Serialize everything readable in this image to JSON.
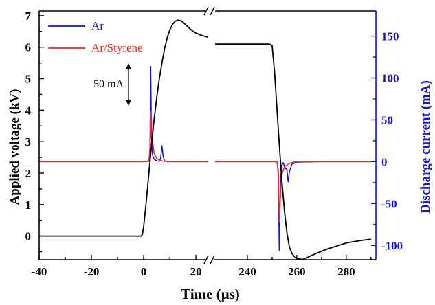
{
  "chart_data": {
    "type": "line",
    "xlabel": "Time (μs)",
    "ylabel_left": "Applied voltage (kV)",
    "ylabel_right": "Discharge current (mA)",
    "x_ticks": [
      "-40",
      "-20",
      "0",
      "20",
      "240",
      "260",
      "280"
    ],
    "y_left_ticks": [
      "0",
      "1",
      "2",
      "3",
      "4",
      "5",
      "6",
      "7"
    ],
    "y_right_ticks": [
      "-100",
      "-50",
      "0",
      "50",
      "100",
      "150"
    ],
    "y_left_range": [
      -0.75,
      7.15
    ],
    "y_right_range": [
      -117,
      180
    ],
    "x_break": "broken axis between 25 and 225 μs",
    "legend_position": "top-left",
    "annotation": "50 mA",
    "colors": {
      "voltage": "#000000",
      "ar": "#1515d8",
      "ar_styrene": "#ff2020",
      "right_axis": "#1515c8"
    },
    "series": [
      {
        "name": "Applied voltage",
        "axis": "left",
        "points": [
          [
            -40,
            0
          ],
          [
            -20,
            0
          ],
          [
            -1,
            0
          ],
          [
            -0.5,
            0.05
          ],
          [
            0,
            0.3
          ],
          [
            1,
            1.1
          ],
          [
            2,
            2.0
          ],
          [
            3,
            2.9
          ],
          [
            4,
            3.7
          ],
          [
            5,
            4.4
          ],
          [
            6,
            5.0
          ],
          [
            7,
            5.5
          ],
          [
            8,
            5.95
          ],
          [
            9,
            6.3
          ],
          [
            10,
            6.55
          ],
          [
            11,
            6.72
          ],
          [
            12,
            6.82
          ],
          [
            13,
            6.86
          ],
          [
            14,
            6.85
          ],
          [
            15,
            6.8
          ],
          [
            16,
            6.72
          ],
          [
            17,
            6.64
          ],
          [
            18,
            6.56
          ],
          [
            19,
            6.5
          ],
          [
            20,
            6.45
          ],
          [
            22,
            6.38
          ],
          [
            24,
            6.33
          ],
          [
            25.5,
            6.31
          ],
          [
            225,
            6.1
          ],
          [
            240,
            6.1
          ],
          [
            249,
            6.1
          ],
          [
            250,
            6.05
          ],
          [
            251,
            5.2
          ],
          [
            252,
            4.0
          ],
          [
            253,
            2.8
          ],
          [
            254,
            1.7
          ],
          [
            255,
            0.8
          ],
          [
            256,
            0.1
          ],
          [
            257,
            -0.35
          ],
          [
            258,
            -0.55
          ],
          [
            259,
            -0.65
          ],
          [
            260,
            -0.7
          ],
          [
            261,
            -0.73
          ],
          [
            262,
            -0.74
          ],
          [
            263,
            -0.73
          ],
          [
            265,
            -0.65
          ],
          [
            268,
            -0.55
          ],
          [
            272,
            -0.42
          ],
          [
            276,
            -0.32
          ],
          [
            280,
            -0.22
          ],
          [
            286,
            -0.14
          ],
          [
            290,
            -0.1
          ]
        ]
      },
      {
        "name": "Ar",
        "axis": "right",
        "points": [
          [
            -40,
            0
          ],
          [
            -20,
            0
          ],
          [
            0,
            0
          ],
          [
            2,
            0.5
          ],
          [
            2.4,
            10
          ],
          [
            2.7,
            114
          ],
          [
            3,
            30
          ],
          [
            3.4,
            8
          ],
          [
            4,
            3
          ],
          [
            5,
            1
          ],
          [
            6,
            0.5
          ],
          [
            6.5,
            4
          ],
          [
            7,
            19
          ],
          [
            7.5,
            6
          ],
          [
            8,
            1
          ],
          [
            10,
            0
          ],
          [
            25.5,
            0
          ],
          [
            225,
            0
          ],
          [
            240,
            0
          ],
          [
            252,
            0
          ],
          [
            252.5,
            -10
          ],
          [
            252.9,
            -106
          ],
          [
            253.3,
            -30
          ],
          [
            253.8,
            -5
          ],
          [
            254.5,
            -1
          ],
          [
            255,
            -6
          ],
          [
            256,
            -10
          ],
          [
            256.5,
            -24
          ],
          [
            257,
            -12
          ],
          [
            258,
            -3
          ],
          [
            260,
            -0.5
          ],
          [
            270,
            0
          ],
          [
            290,
            0
          ]
        ]
      },
      {
        "name": "Ar/Styrene",
        "axis": "right",
        "points": [
          [
            -40,
            0
          ],
          [
            -20,
            0
          ],
          [
            0,
            0
          ],
          [
            2,
            1
          ],
          [
            2.5,
            20
          ],
          [
            2.85,
            60
          ],
          [
            3.2,
            30
          ],
          [
            4,
            10
          ],
          [
            5,
            4
          ],
          [
            6,
            2
          ],
          [
            7,
            1
          ],
          [
            9,
            0
          ],
          [
            25.5,
            0
          ],
          [
            225,
            0
          ],
          [
            240,
            0
          ],
          [
            252,
            0
          ],
          [
            252.5,
            -15
          ],
          [
            252.9,
            -72
          ],
          [
            253.4,
            -40
          ],
          [
            254,
            -15
          ],
          [
            255,
            -6
          ],
          [
            256,
            -4
          ],
          [
            257,
            -2
          ],
          [
            258,
            -1
          ],
          [
            260,
            0
          ],
          [
            290,
            0
          ]
        ]
      }
    ]
  },
  "legend": {
    "ar": "Ar",
    "ar_styrene": "Ar/Styrene"
  }
}
